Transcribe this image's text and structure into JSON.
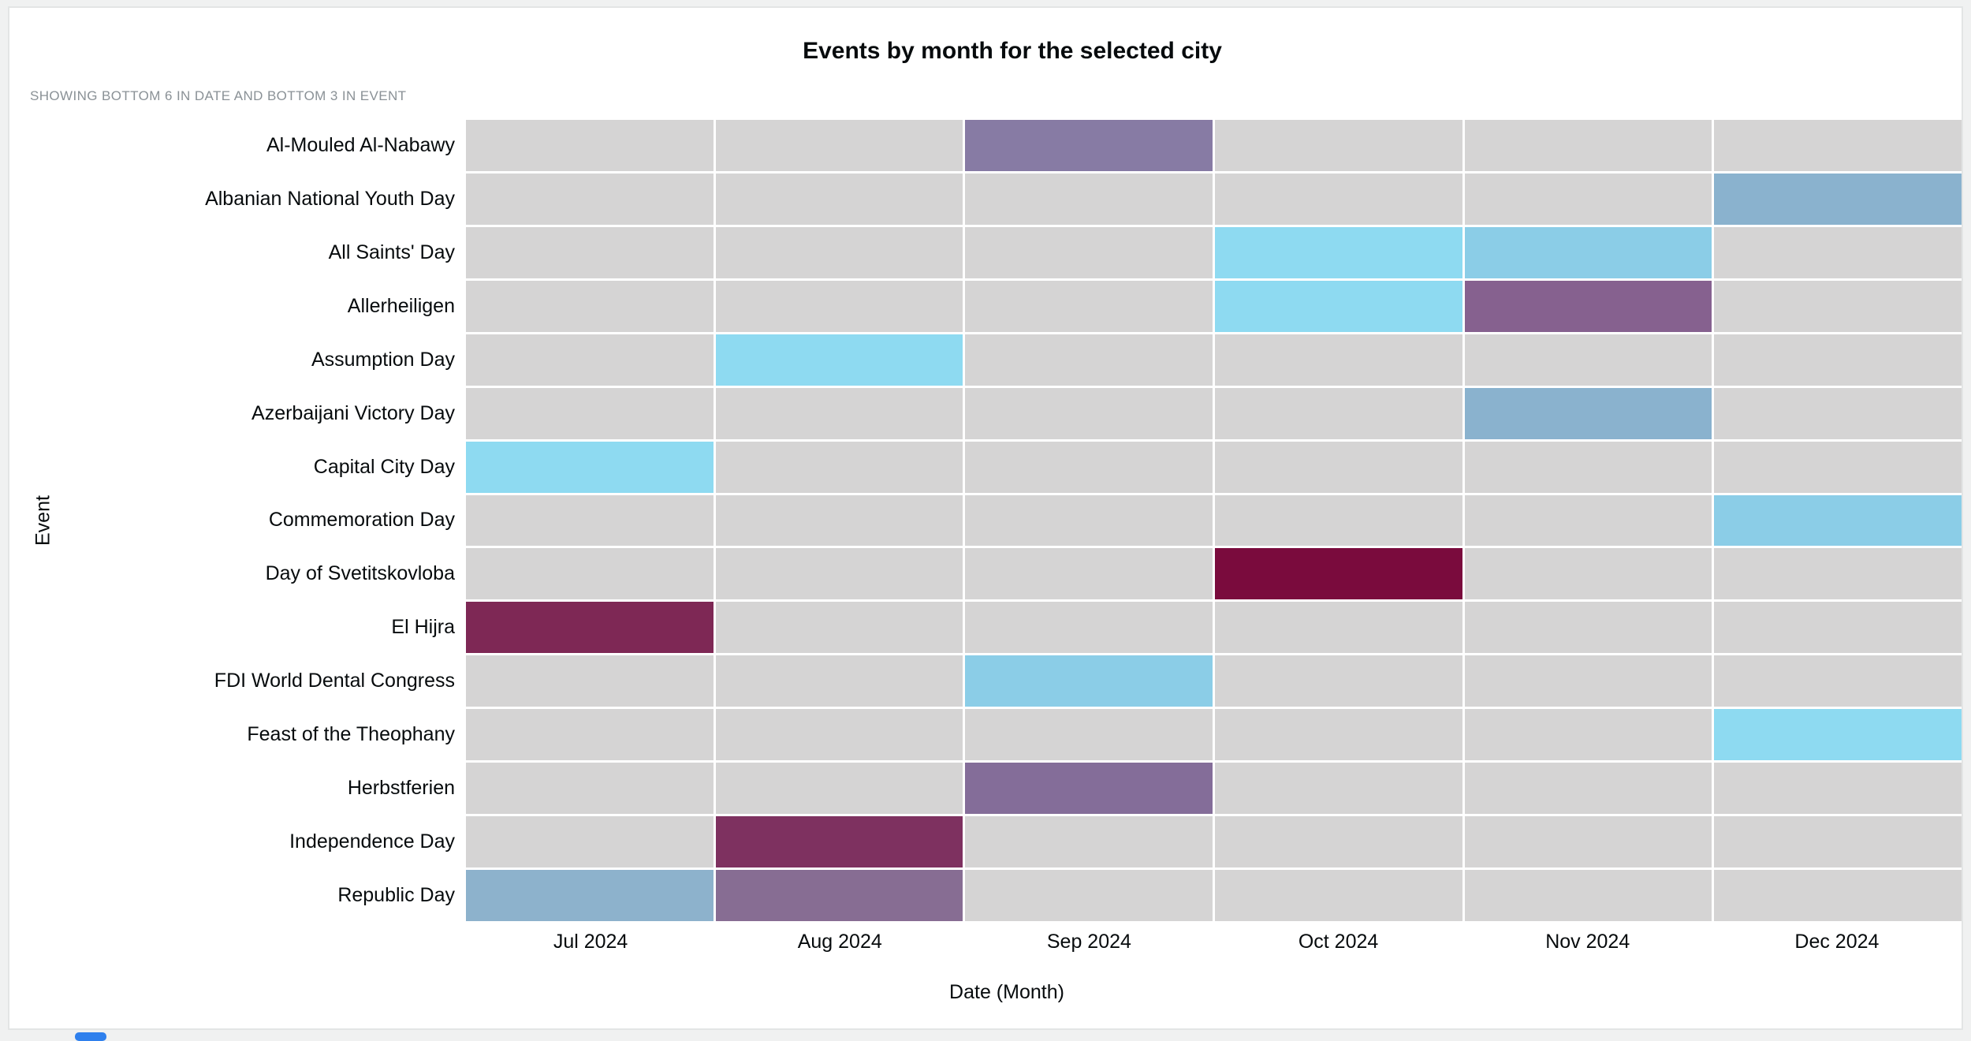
{
  "chart_data": {
    "type": "heatmap",
    "title": "Events by month for the selected city",
    "subtitle": "SHOWING BOTTOM 6 IN DATE AND BOTTOM 3 IN EVENT",
    "xlabel": "Date (Month)",
    "ylabel": "Event",
    "x_categories": [
      "Jul 2024",
      "Aug 2024",
      "Sep 2024",
      "Oct 2024",
      "Nov 2024",
      "Dec 2024"
    ],
    "y_categories": [
      "Al-Mouled Al-Nabawy",
      "Albanian National Youth Day",
      "All Saints' Day",
      "Allerheiligen",
      "Assumption Day",
      "Azerbaijani Victory Day",
      "Capital City Day",
      "Commemoration Day",
      "Day of Svetitskovloba",
      "El Hijra",
      "FDI World Dental Congress",
      "Feast of the Theophany",
      "Herbstferien",
      "Independence Day",
      "Republic Day"
    ],
    "empty_cell_color": "#d5d4d4",
    "cells": [
      {
        "event": "Al-Mouled Al-Nabawy",
        "month": "Sep 2024",
        "color": "#877ba4"
      },
      {
        "event": "Albanian National Youth Day",
        "month": "Dec 2024",
        "color": "#8ab2ce"
      },
      {
        "event": "All Saints' Day",
        "month": "Oct 2024",
        "color": "#8edaf1"
      },
      {
        "event": "All Saints' Day",
        "month": "Nov 2024",
        "color": "#8bcde7"
      },
      {
        "event": "Allerheiligen",
        "month": "Oct 2024",
        "color": "#8edaf1"
      },
      {
        "event": "Allerheiligen",
        "month": "Nov 2024",
        "color": "#86618f"
      },
      {
        "event": "Assumption Day",
        "month": "Aug 2024",
        "color": "#8edaf1"
      },
      {
        "event": "Azerbaijani Victory Day",
        "month": "Nov 2024",
        "color": "#8ab2ce"
      },
      {
        "event": "Capital City Day",
        "month": "Jul 2024",
        "color": "#8edaf1"
      },
      {
        "event": "Commemoration Day",
        "month": "Dec 2024",
        "color": "#8bcde7"
      },
      {
        "event": "Day of Svetitskovloba",
        "month": "Oct 2024",
        "color": "#7a0b3d"
      },
      {
        "event": "El Hijra",
        "month": "Jul 2024",
        "color": "#7e2855"
      },
      {
        "event": "FDI World Dental Congress",
        "month": "Sep 2024",
        "color": "#8bcde7"
      },
      {
        "event": "Feast of the Theophany",
        "month": "Dec 2024",
        "color": "#8edaf1"
      },
      {
        "event": "Herbstferien",
        "month": "Sep 2024",
        "color": "#846d99"
      },
      {
        "event": "Independence Day",
        "month": "Aug 2024",
        "color": "#7e3160"
      },
      {
        "event": "Republic Day",
        "month": "Jul 2024",
        "color": "#8db2cc"
      },
      {
        "event": "Republic Day",
        "month": "Aug 2024",
        "color": "#876d93"
      }
    ],
    "layout": {
      "grid": "white gaps between cells",
      "legend": "none",
      "accent_color": "#2f80ed"
    }
  }
}
